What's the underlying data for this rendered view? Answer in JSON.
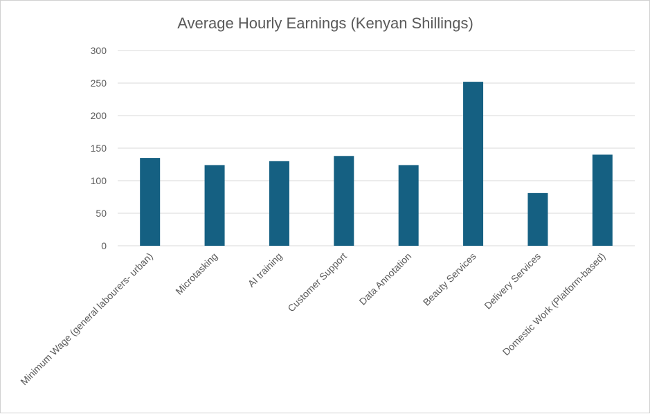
{
  "chart_data": {
    "type": "bar",
    "title": "Average Hourly Earnings (Kenyan Shillings)",
    "xlabel": "",
    "ylabel": "",
    "categories": [
      "Minimum Wage (general labourers- urban)",
      "Microtasking",
      "AI training",
      "Customer Support",
      "Data Annotation",
      "Beauty Services",
      "Delivery Services",
      "Domestic Work (Platform-based)"
    ],
    "values": [
      135,
      124,
      130,
      138,
      124,
      252,
      81,
      140
    ],
    "ylim": [
      0,
      300
    ],
    "yticks": [
      "0",
      "50",
      "100",
      "150",
      "200",
      "250",
      "300"
    ],
    "grid": true,
    "legend": "none",
    "bar_color": "#156082"
  }
}
